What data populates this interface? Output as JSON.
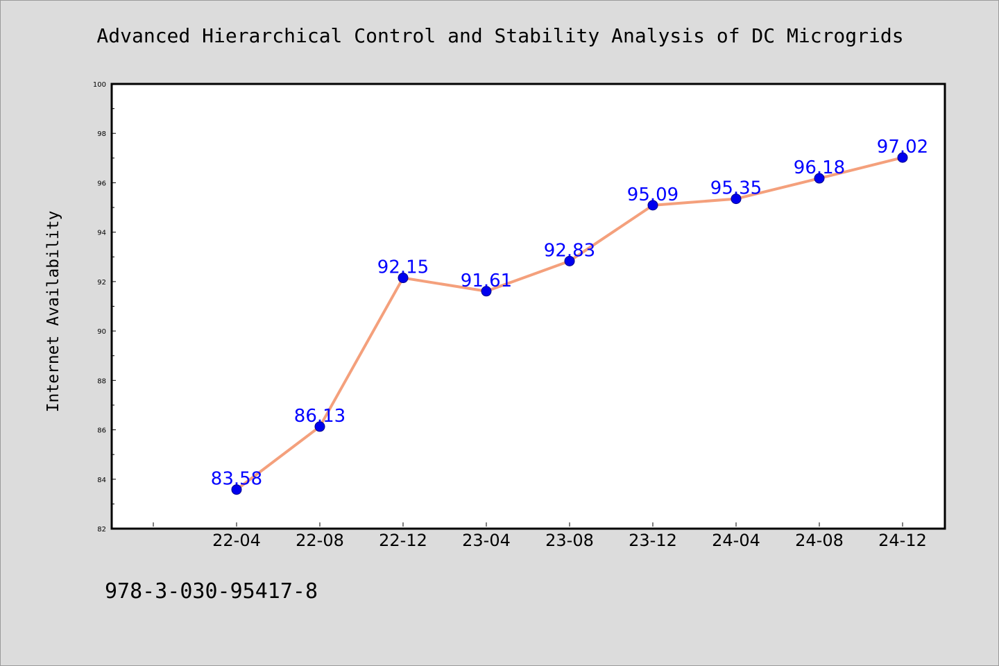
{
  "chart_data": {
    "type": "line",
    "title": "Advanced Hierarchical Control and Stability Analysis of DC Microgrids",
    "xlabel": "",
    "ylabel": "Internet Availability",
    "categories": [
      "22-04",
      "22-08",
      "22-12",
      "23-04",
      "23-08",
      "23-12",
      "24-04",
      "24-08",
      "24-12"
    ],
    "series": [
      {
        "values": [
          83.58,
          86.13,
          92.15,
          91.61,
          92.83,
          95.09,
          95.35,
          96.18,
          97.02
        ],
        "data_labels": [
          "83.58",
          "86.13",
          "92.15",
          "91.61",
          "92.83",
          "95.09",
          "95.35",
          "96.18",
          "97.02"
        ],
        "line_color": "#f4a07c",
        "marker_color": "#0000ee",
        "label_color": "#0000ff"
      }
    ],
    "ylim": [
      82,
      100
    ],
    "yticks": [
      82,
      84,
      86,
      88,
      90,
      92,
      94,
      96,
      98,
      100
    ],
    "ytick_labels": [
      "82",
      "84",
      "86",
      "88",
      "90",
      "92",
      "94",
      "96",
      "98",
      "100"
    ],
    "grid": false,
    "legend": "none"
  },
  "footer": {
    "code": "978-3-030-95417-8"
  },
  "colors": {
    "background": "#dcdcdc",
    "plot_background": "#ffffff"
  }
}
